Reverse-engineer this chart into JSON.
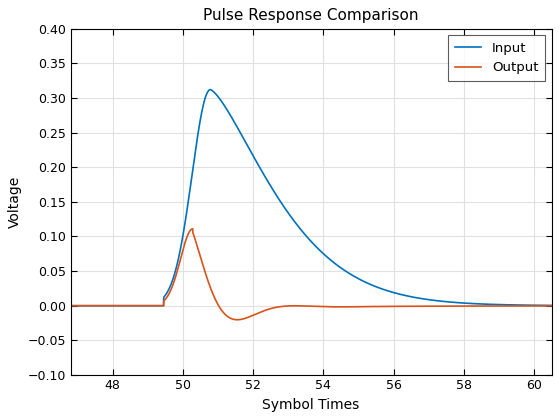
{
  "title": "Pulse Response Comparison",
  "xlabel": "Symbol Times",
  "ylabel": "Voltage",
  "xlim": [
    46.8,
    60.5
  ],
  "ylim": [
    -0.1,
    0.4
  ],
  "xticks": [
    48,
    50,
    52,
    54,
    56,
    58,
    60
  ],
  "yticks": [
    -0.1,
    -0.05,
    0.0,
    0.05,
    0.1,
    0.15,
    0.2,
    0.25,
    0.3,
    0.35,
    0.4
  ],
  "input_color": "#0072BD",
  "output_color": "#D95319",
  "legend_labels": [
    "Input",
    "Output"
  ],
  "bg_color": "#FFFFFF",
  "grid_color": "#E0E0E0",
  "title_fontsize": 11,
  "label_fontsize": 10,
  "tick_fontsize": 9
}
